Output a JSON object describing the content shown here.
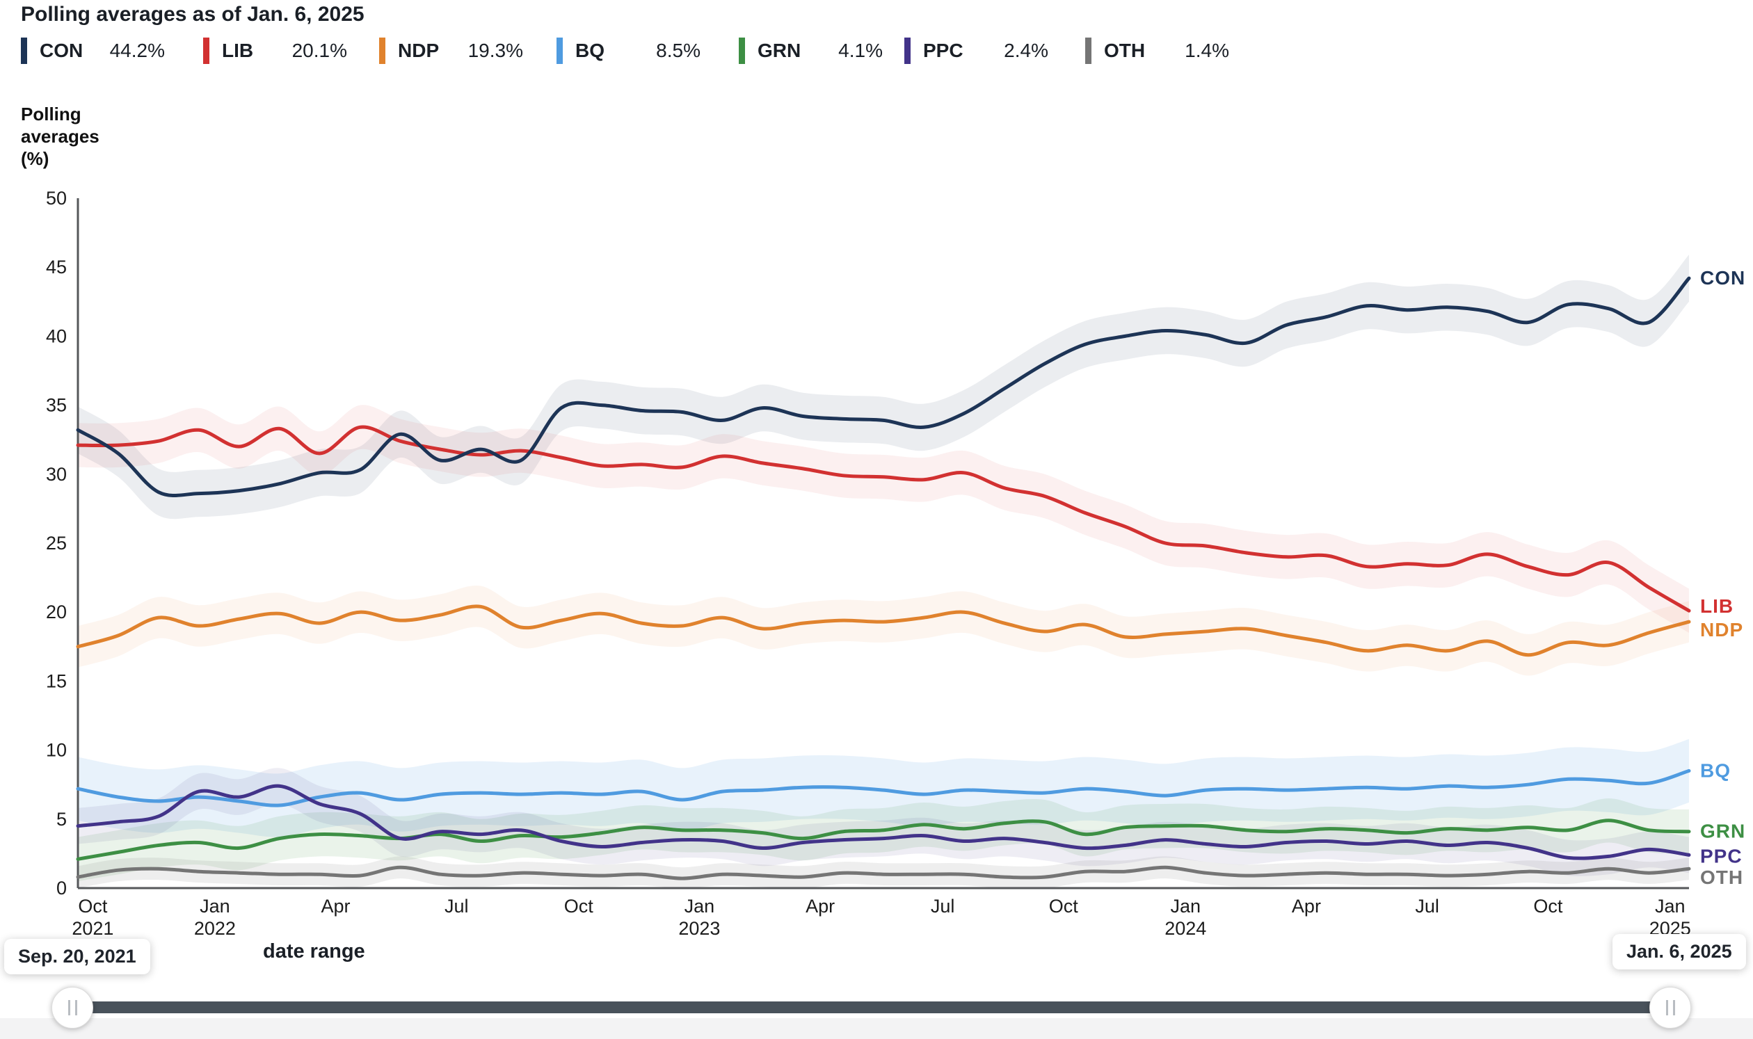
{
  "header": {
    "title": "Polling averages as of Jan. 6, 2025"
  },
  "legend": {
    "items": [
      {
        "party": "CON",
        "value": "44.2%",
        "color": "#1d3456"
      },
      {
        "party": "LIB",
        "value": "20.1%",
        "color": "#d23131"
      },
      {
        "party": "NDP",
        "value": "19.3%",
        "color": "#e0822d"
      },
      {
        "party": "BQ",
        "value": "8.5%",
        "color": "#4f9be0"
      },
      {
        "party": "GRN",
        "value": "4.1%",
        "color": "#3d8f44"
      },
      {
        "party": "PPC",
        "value": "2.4%",
        "color": "#423389"
      },
      {
        "party": "OTH",
        "value": "1.4%",
        "color": "#757575"
      }
    ]
  },
  "y_axis_label": {
    "line1": "Polling",
    "line2": "averages",
    "line3": "(%)"
  },
  "chart_data": {
    "type": "line",
    "title": "Polling averages as of Jan. 6, 2025",
    "ylabel": "Polling averages (%)",
    "ylim": [
      0,
      50
    ],
    "grid": false,
    "legend_position": "top",
    "x_unit": "months since Sep. 20, 2021 (t = 0 to 40)",
    "x_start_date": "Sep. 20, 2021",
    "x_end_date": "Jan. 6, 2025",
    "y_ticks": [
      0,
      5,
      10,
      15,
      20,
      25,
      30,
      35,
      40,
      45,
      50
    ],
    "x_ticks": [
      {
        "line1": "Oct",
        "line2": "2021",
        "t": 0.37
      },
      {
        "line1": "Jan",
        "line2": "2022",
        "t": 3.4
      },
      {
        "line1": "Apr",
        "line2": "",
        "t": 6.4
      },
      {
        "line1": "Jul",
        "line2": "",
        "t": 9.4
      },
      {
        "line1": "Oct",
        "line2": "",
        "t": 12.43
      },
      {
        "line1": "Jan",
        "line2": "2023",
        "t": 15.43
      },
      {
        "line1": "Apr",
        "line2": "",
        "t": 18.43
      },
      {
        "line1": "Jul",
        "line2": "",
        "t": 21.47
      },
      {
        "line1": "Oct",
        "line2": "",
        "t": 24.47
      },
      {
        "line1": "Jan",
        "line2": "2024",
        "t": 27.5
      },
      {
        "line1": "Apr",
        "line2": "",
        "t": 30.5
      },
      {
        "line1": "Jul",
        "line2": "",
        "t": 33.5
      },
      {
        "line1": "Oct",
        "line2": "",
        "t": 36.5
      },
      {
        "line1": "Jan",
        "line2": "2025",
        "t": 39.53
      }
    ],
    "series": [
      {
        "name": "CON",
        "color": "#1d3456",
        "band": 1.7,
        "band_opacity": 0.09,
        "values": [
          33.2,
          31.5,
          28.7,
          28.6,
          28.8,
          29.3,
          30.1,
          30.3,
          32.9,
          31.0,
          31.8,
          31.0,
          34.8,
          35.0,
          34.6,
          34.5,
          33.9,
          34.8,
          34.2,
          34.0,
          33.9,
          33.4,
          34.4,
          36.2,
          38.0,
          39.4,
          40.0,
          40.4,
          40.1,
          39.5,
          40.8,
          41.4,
          42.2,
          41.9,
          42.1,
          41.8,
          41.0,
          42.3,
          42.0,
          41.0,
          44.2
        ]
      },
      {
        "name": "LIB",
        "color": "#d23131",
        "band": 1.6,
        "band_opacity": 0.07,
        "values": [
          32.1,
          32.1,
          32.4,
          33.2,
          32.0,
          33.3,
          31.5,
          33.4,
          32.4,
          31.8,
          31.4,
          31.7,
          31.2,
          30.6,
          30.7,
          30.5,
          31.3,
          30.8,
          30.4,
          29.9,
          29.8,
          29.6,
          30.1,
          29.0,
          28.4,
          27.2,
          26.2,
          25.0,
          24.8,
          24.3,
          24.0,
          24.1,
          23.3,
          23.5,
          23.4,
          24.2,
          23.3,
          22.7,
          23.6,
          21.8,
          20.1
        ]
      },
      {
        "name": "NDP",
        "color": "#e0822d",
        "band": 1.5,
        "band_opacity": 0.08,
        "values": [
          17.5,
          18.3,
          19.6,
          19.0,
          19.5,
          19.9,
          19.2,
          20.0,
          19.4,
          19.8,
          20.4,
          18.9,
          19.4,
          19.9,
          19.2,
          19.0,
          19.6,
          18.8,
          19.2,
          19.4,
          19.3,
          19.6,
          20.0,
          19.2,
          18.6,
          19.1,
          18.2,
          18.4,
          18.6,
          18.8,
          18.3,
          17.8,
          17.2,
          17.6,
          17.2,
          17.9,
          16.9,
          17.8,
          17.6,
          18.5,
          19.3
        ]
      },
      {
        "name": "BQ",
        "color": "#4f9be0",
        "band": 2.3,
        "band_opacity": 0.13,
        "values": [
          7.2,
          6.6,
          6.3,
          6.6,
          6.3,
          6.0,
          6.6,
          6.9,
          6.4,
          6.8,
          6.9,
          6.8,
          6.9,
          6.8,
          7.0,
          6.4,
          7.0,
          7.1,
          7.3,
          7.3,
          7.1,
          6.8,
          7.1,
          7.0,
          6.9,
          7.2,
          7.0,
          6.7,
          7.1,
          7.2,
          7.1,
          7.2,
          7.3,
          7.2,
          7.4,
          7.3,
          7.5,
          7.9,
          7.8,
          7.6,
          8.5
        ]
      },
      {
        "name": "GRN",
        "color": "#3d8f44",
        "band": 1.6,
        "band_opacity": 0.11,
        "values": [
          2.1,
          2.6,
          3.1,
          3.3,
          2.9,
          3.6,
          3.9,
          3.8,
          3.6,
          3.9,
          3.4,
          3.8,
          3.7,
          4.0,
          4.4,
          4.2,
          4.2,
          4.0,
          3.6,
          4.1,
          4.2,
          4.6,
          4.3,
          4.7,
          4.8,
          3.9,
          4.4,
          4.5,
          4.5,
          4.2,
          4.1,
          4.3,
          4.2,
          4.0,
          4.3,
          4.2,
          4.4,
          4.2,
          4.9,
          4.2,
          4.1
        ]
      },
      {
        "name": "PPC",
        "color": "#423389",
        "band": 1.3,
        "band_opacity": 0.09,
        "values": [
          4.5,
          4.8,
          5.2,
          7.0,
          6.6,
          7.4,
          6.1,
          5.4,
          3.6,
          4.1,
          3.9,
          4.2,
          3.4,
          3.0,
          3.3,
          3.5,
          3.4,
          2.9,
          3.3,
          3.5,
          3.6,
          3.8,
          3.4,
          3.6,
          3.3,
          2.9,
          3.1,
          3.5,
          3.2,
          3.0,
          3.3,
          3.4,
          3.2,
          3.4,
          3.1,
          3.3,
          2.9,
          2.2,
          2.3,
          2.8,
          2.4
        ]
      },
      {
        "name": "OTH",
        "color": "#757575",
        "band": 0.8,
        "band_opacity": 0.12,
        "values": [
          0.8,
          1.3,
          1.4,
          1.2,
          1.1,
          1.0,
          1.0,
          0.9,
          1.5,
          1.0,
          0.9,
          1.1,
          1.0,
          0.9,
          1.0,
          0.7,
          1.0,
          0.9,
          0.8,
          1.1,
          1.0,
          1.0,
          1.0,
          0.8,
          0.8,
          1.2,
          1.2,
          1.5,
          1.1,
          0.9,
          1.0,
          1.1,
          1.0,
          1.0,
          0.9,
          1.0,
          1.2,
          1.1,
          1.4,
          1.1,
          1.4
        ]
      }
    ]
  },
  "slider": {
    "range_text": "date range",
    "start_label": "Sep. 20, 2021",
    "end_label": "Jan. 6, 2025"
  }
}
